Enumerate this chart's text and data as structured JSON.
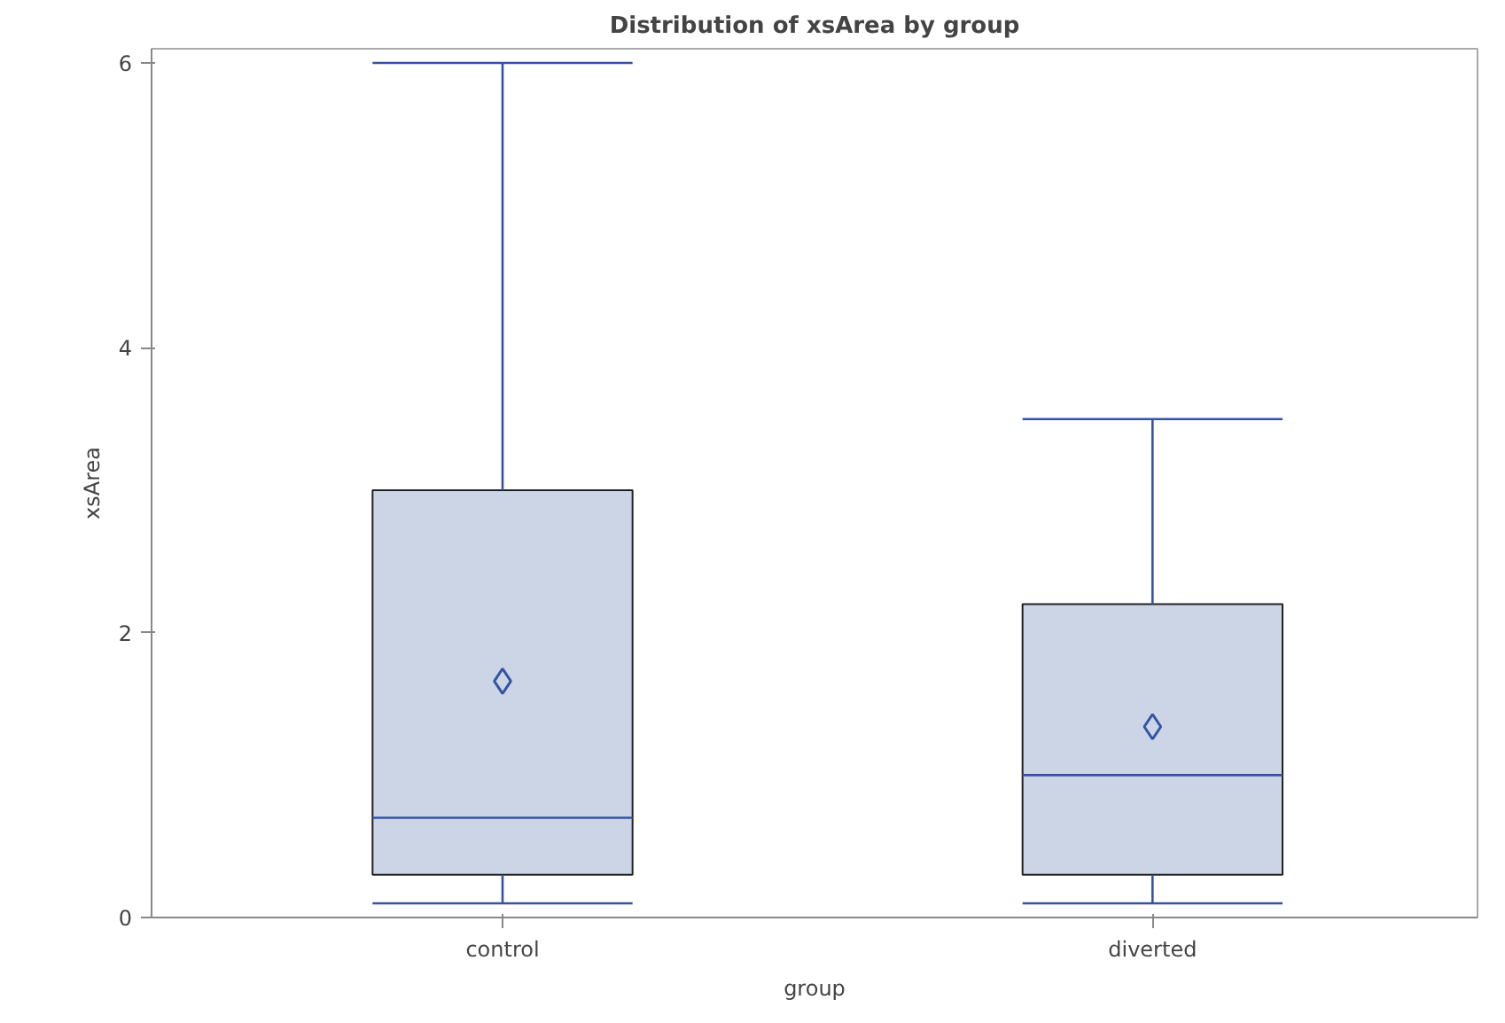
{
  "chart_data": {
    "type": "box",
    "title": "Distribution of xsArea by group",
    "xlabel": "group",
    "ylabel": "xsArea",
    "categories": [
      "control",
      "diverted"
    ],
    "series": [
      {
        "color": "#cbd5e5",
        "boxes": [
          {
            "low": 0.1,
            "q1": 0.3,
            "median": 0.7,
            "q3": 3.0,
            "high": 6.0,
            "mean": 1.66
          },
          {
            "low": 0.1,
            "q1": 0.3,
            "median": 1.0,
            "q3": 2.2,
            "high": 3.5,
            "mean": 1.34
          }
        ]
      }
    ],
    "ylim": [
      0,
      6.1
    ],
    "yticks": [
      0,
      2,
      4,
      6
    ],
    "grid": false
  }
}
